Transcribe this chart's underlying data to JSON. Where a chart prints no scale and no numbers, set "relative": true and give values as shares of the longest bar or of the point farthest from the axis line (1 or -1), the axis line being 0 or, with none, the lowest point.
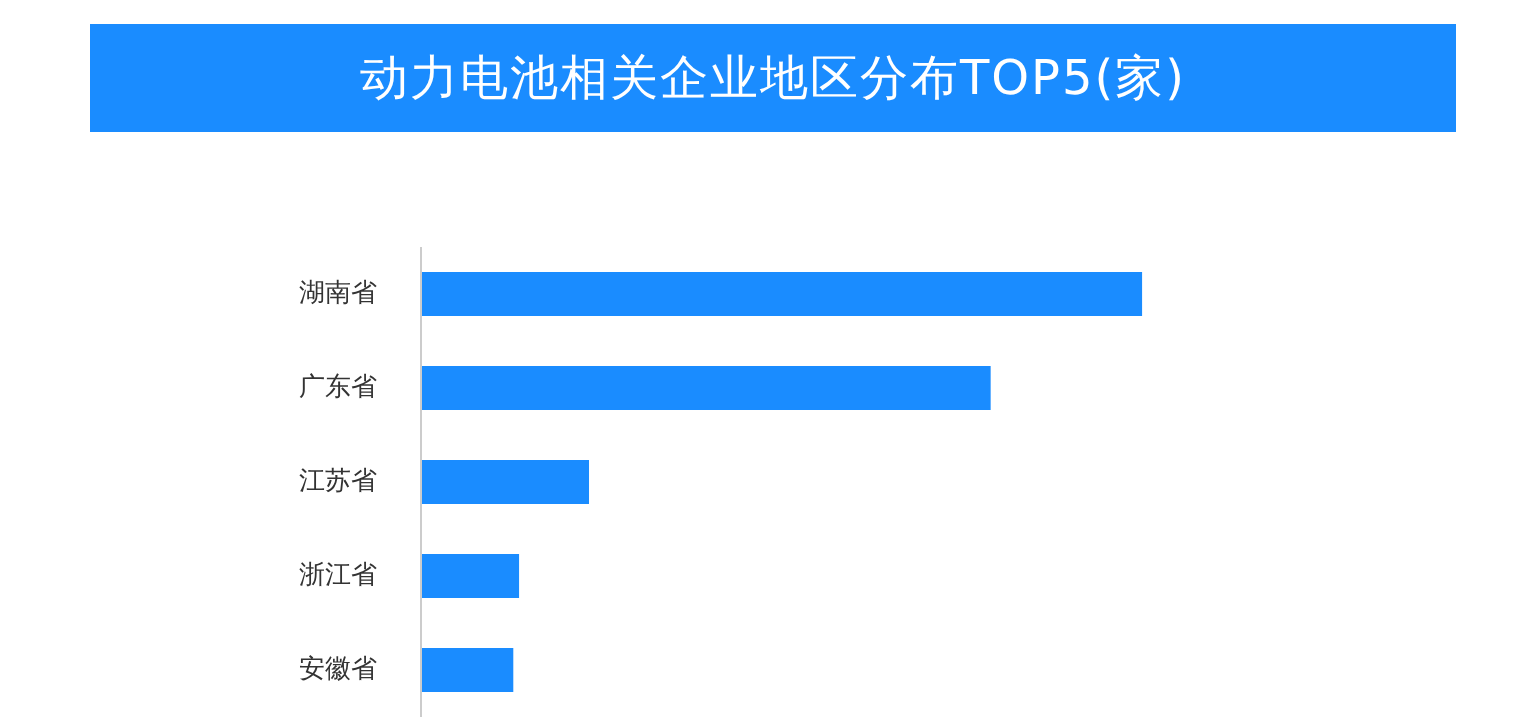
{
  "chart_data": {
    "type": "bar",
    "title": "动力电池相关企业地区分布TOP5(家)",
    "orientation": "horizontal",
    "relative": true,
    "categories": [
      "湖南省",
      "广东省",
      "江苏省",
      "浙江省",
      "安徽省"
    ],
    "values": [
      1,
      0.79,
      0.233,
      0.136,
      0.128
    ],
    "color": "#1a8cff",
    "grid": false
  }
}
